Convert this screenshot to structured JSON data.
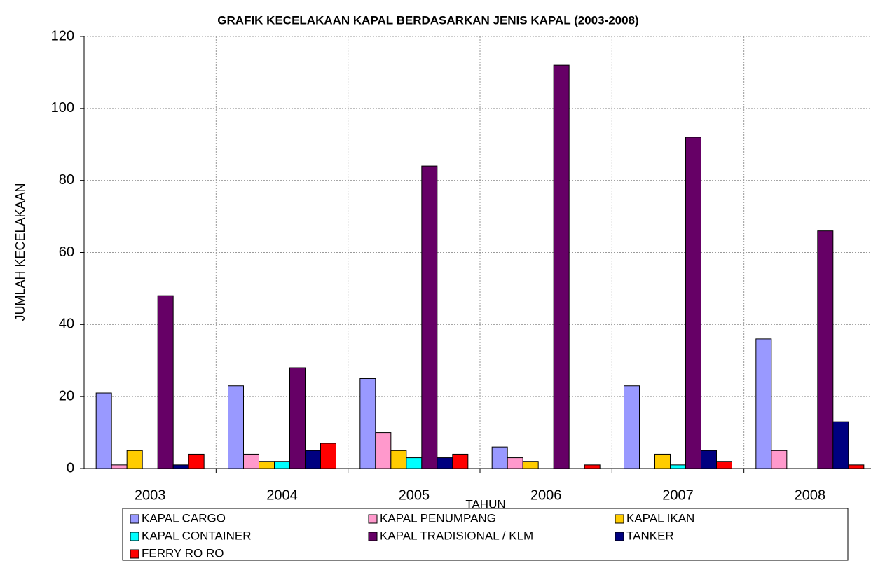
{
  "chart_data": {
    "type": "bar",
    "title": "GRAFIK KECELAKAAN KAPAL BERDASARKAN JENIS KAPAL (2003-2008)",
    "x_label": "TAHUN",
    "y_label": "JUMLAH KECELAKAAN",
    "categories": [
      "2003",
      "2004",
      "2005",
      "2006",
      "2007",
      "2008"
    ],
    "series": [
      {
        "name": "KAPAL CARGO",
        "color": "#9999FF",
        "values": [
          21,
          23,
          25,
          6,
          23,
          36
        ]
      },
      {
        "name": "KAPAL PENUMPANG",
        "color": "#FF99CC",
        "values": [
          1,
          4,
          10,
          3,
          0,
          5
        ]
      },
      {
        "name": "KAPAL IKAN",
        "color": "#FFCC00",
        "values": [
          5,
          2,
          5,
          2,
          4,
          0
        ]
      },
      {
        "name": "KAPAL CONTAINER",
        "color": "#00FFFF",
        "values": [
          0,
          2,
          3,
          0,
          1,
          0
        ]
      },
      {
        "name": "KAPAL TRADISIONAL / KLM",
        "color": "#660066",
        "values": [
          48,
          28,
          84,
          112,
          92,
          66
        ]
      },
      {
        "name": "TANKER",
        "color": "#000080",
        "values": [
          1,
          5,
          3,
          0,
          5,
          13
        ]
      },
      {
        "name": "FERRY RO RO",
        "color": "#FF0000",
        "values": [
          4,
          7,
          4,
          1,
          2,
          1
        ]
      }
    ],
    "ylim": [
      0,
      120
    ],
    "yticks": [
      0,
      20,
      40,
      60,
      80,
      100,
      120
    ],
    "grid": true
  }
}
